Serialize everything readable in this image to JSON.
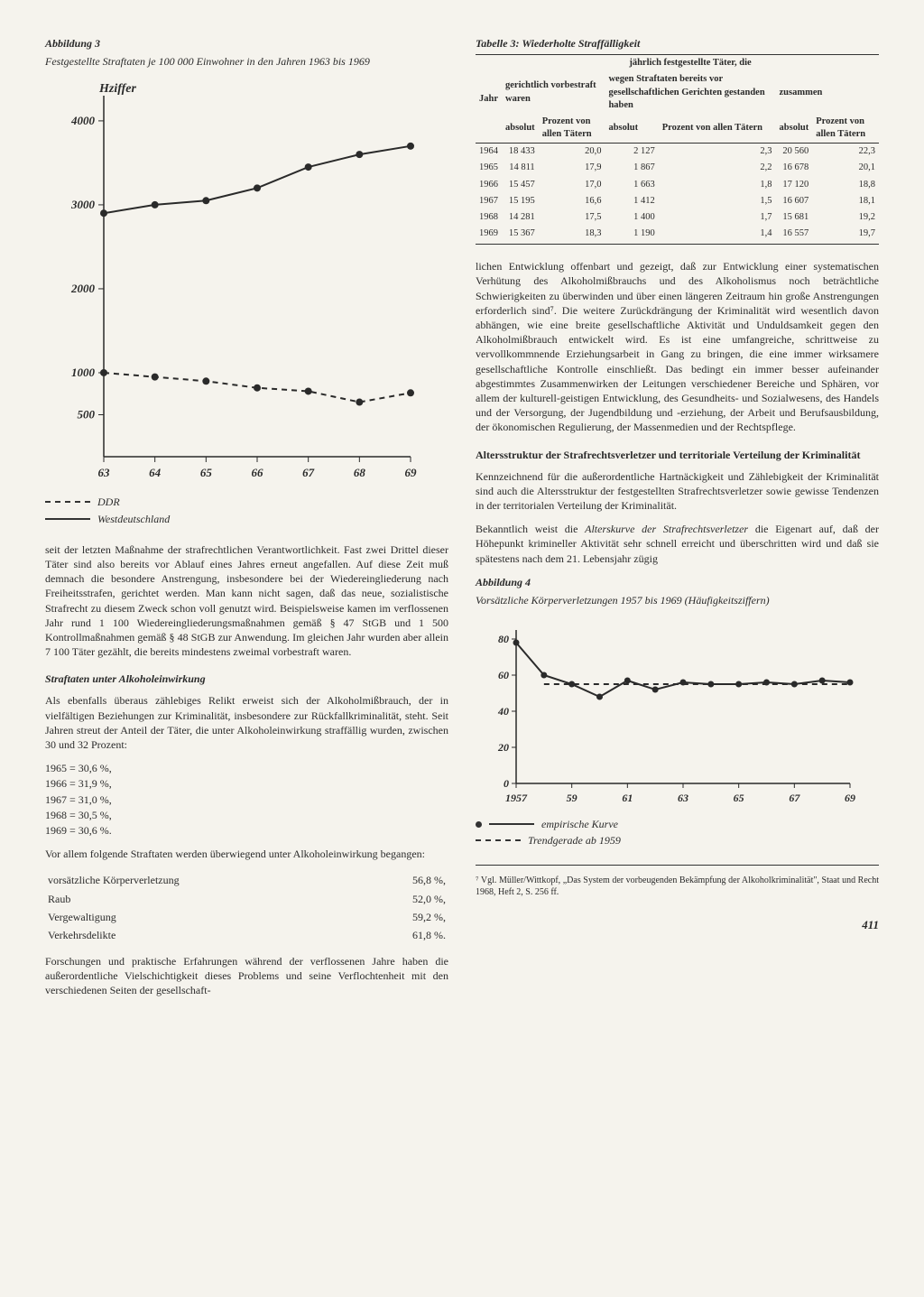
{
  "page_number": "411",
  "left": {
    "fig3": {
      "label": "Abbildung 3",
      "caption": "Festgestellte Straftaten je 100 000 Einwohner in den Jahren 1963 bis 1969",
      "y_label": "Hziffer",
      "type": "line",
      "x_labels": [
        "63",
        "64",
        "65",
        "66",
        "67",
        "68",
        "69"
      ],
      "y_ticks": [
        500,
        1000,
        2000,
        3000,
        4000
      ],
      "ylim": [
        0,
        4300
      ],
      "series": [
        {
          "name": "DDR",
          "style": "dashed",
          "marker": "circle",
          "values": [
            1000,
            950,
            900,
            820,
            780,
            650,
            760
          ]
        },
        {
          "name": "Westdeutschland",
          "style": "solid",
          "marker": "circle",
          "values": [
            2900,
            3000,
            3050,
            3200,
            3450,
            3600,
            3700
          ]
        }
      ],
      "line_color": "#2a2a2a",
      "legend": [
        {
          "style": "dashed",
          "label": "DDR"
        },
        {
          "style": "solid",
          "label": "Westdeutschland"
        }
      ]
    },
    "para1": "seit der letzten Maßnahme der strafrechtlichen Verantwortlichkeit. Fast zwei Drittel dieser Täter sind also bereits vor Ablauf eines Jahres erneut angefallen. Auf diese Zeit muß demnach die besondere Anstrengung, insbesondere bei der Wiedereingliederung nach Freiheitsstrafen, gerichtet werden. Man kann nicht sagen, daß das neue, sozialistische Strafrecht zu diesem Zweck schon voll genutzt wird. Beispielsweise kamen im verflossenen Jahr rund 1 100 Wiedereingliederungsmaßnahmen gemäß § 47 StGB und 1 500 Kontrollmaßnahmen gemäß § 48 StGB zur Anwendung. Im gleichen Jahr wurden aber allein 7 100 Täter gezählt, die bereits mindestens zweimal vorbestraft waren.",
    "heading_alcohol": "Straftaten unter Alkoholeinwirkung",
    "para2": "Als ebenfalls überaus zählebiges Relikt erweist sich der Alkoholmißbrauch, der in vielfältigen Beziehungen zur Kriminalität, insbesondere zur Rückfallkriminalität, steht. Seit Jahren streut der Anteil der Täter, die unter Alkoholeinwirkung straffällig wurden, zwischen 30 und 32 Prozent:",
    "alcohol_years": [
      {
        "year": "1965",
        "eq": "=",
        "pct": "30,6 %,"
      },
      {
        "year": "1966",
        "eq": "=",
        "pct": "31,9 %,"
      },
      {
        "year": "1967",
        "eq": "=",
        "pct": "31,0 %,"
      },
      {
        "year": "1968",
        "eq": "=",
        "pct": "30,5 %,"
      },
      {
        "year": "1969",
        "eq": "=",
        "pct": "30,6 %."
      }
    ],
    "para3": "Vor allem folgende Straftaten werden überwiegend unter Alkoholeinwirkung begangen:",
    "crime_pcts": [
      {
        "label": "vorsätzliche Körperverletzung",
        "pct": "56,8 %,"
      },
      {
        "label": "Raub",
        "pct": "52,0 %,"
      },
      {
        "label": "Vergewaltigung",
        "pct": "59,2 %,"
      },
      {
        "label": "Verkehrsdelikte",
        "pct": "61,8 %."
      }
    ],
    "para4": "Forschungen und praktische Erfahrungen während der verflossenen Jahre haben die außerordentliche Vielschichtigkeit dieses Problems und seine Verflochtenheit mit den verschiedenen Seiten der gesellschaft-"
  },
  "right": {
    "table3": {
      "title": "Tabelle 3: Wiederholte Straffälligkeit",
      "head_jahr": "Jahr",
      "head_super": "jährlich festgestellte Täter, die",
      "head_group1": "gerichtlich vorbestraft waren",
      "head_group2": "wegen Straftaten bereits vor gesellschaftlichen Gerichten gestanden haben",
      "head_group3": "zusammen",
      "sub_abs": "absolut",
      "sub_pct": "Prozent von allen Tätern",
      "rows": [
        {
          "y": "1964",
          "a1": "18 433",
          "p1": "20,0",
          "a2": "2 127",
          "p2": "2,3",
          "a3": "20 560",
          "p3": "22,3"
        },
        {
          "y": "1965",
          "a1": "14 811",
          "p1": "17,9",
          "a2": "1 867",
          "p2": "2,2",
          "a3": "16 678",
          "p3": "20,1"
        },
        {
          "y": "1966",
          "a1": "15 457",
          "p1": "17,0",
          "a2": "1 663",
          "p2": "1,8",
          "a3": "17 120",
          "p3": "18,8"
        },
        {
          "y": "1967",
          "a1": "15 195",
          "p1": "16,6",
          "a2": "1 412",
          "p2": "1,5",
          "a3": "16 607",
          "p3": "18,1"
        },
        {
          "y": "1968",
          "a1": "14 281",
          "p1": "17,5",
          "a2": "1 400",
          "p2": "1,7",
          "a3": "15 681",
          "p3": "19,2"
        },
        {
          "y": "1969",
          "a1": "15 367",
          "p1": "18,3",
          "a2": "1 190",
          "p2": "1,4",
          "a3": "16 557",
          "p3": "19,7"
        }
      ]
    },
    "para_cont": "lichen Entwicklung offenbart und gezeigt, daß zur Entwicklung einer systematischen Verhütung des Alkoholmißbrauchs und des Alkoholismus noch beträchtliche Schwierigkeiten zu überwinden und über einen längeren Zeitraum hin große Anstrengungen erforderlich sind⁷. Die weitere Zurückdrängung der Kriminalität wird wesentlich davon abhängen, wie eine breite gesellschaftliche Aktivität und Unduldsamkeit gegen den Alkoholmißbrauch entwickelt wird. Es ist eine umfangreiche, schrittweise zu vervollkommnende Erziehungsarbeit in Gang zu bringen, die eine immer wirksamere gesellschaftliche Kontrolle einschließt. Das bedingt ein immer besser aufeinander abgestimmtes Zusammenwirken der Leitungen verschiedener Bereiche und Sphären, vor allem der kulturell-geistigen Entwicklung, des Gesundheits- und Sozialwesens, des Handels und der Versorgung, der Jugendbildung und -erziehung, der Arbeit und Berufsausbildung, der ökonomischen Regulierung, der Massenmedien und der Rechtspflege.",
    "heading_age": "Altersstruktur der Strafrechtsverletzer und territoriale Verteilung der Kriminalität",
    "para_age1": "Kennzeichnend für die außerordentliche Hartnäckigkeit und Zählebigkeit der Kriminalität sind auch die Altersstruktur der festgestellten Strafrechtsverletzer sowie gewisse Tendenzen in der territorialen Verteilung der Kriminalität.",
    "para_age2_prefix": "Bekanntlich weist die ",
    "para_age2_italic": "Alterskurve der Strafrechtsverletzer",
    "para_age2_suffix": " die Eigenart auf, daß der Höhepunkt krimineller Aktivität sehr schnell erreicht und überschritten wird und daß sie spätestens nach dem 21. Lebensjahr zügig",
    "fig4": {
      "label": "Abbildung 4",
      "caption": "Vorsätzliche Körperverletzungen 1957 bis 1969 (Häufigkeitsziffern)",
      "type": "line",
      "x_labels": [
        "1957",
        "59",
        "61",
        "63",
        "65",
        "67",
        "69"
      ],
      "y_ticks": [
        0,
        20,
        40,
        60,
        80
      ],
      "ylim": [
        0,
        85
      ],
      "series": [
        {
          "name": "empirische Kurve",
          "style": "solid",
          "marker": "circle",
          "values": [
            78,
            60,
            55,
            48,
            57,
            52,
            56,
            55,
            55,
            56,
            55,
            57,
            56
          ]
        },
        {
          "name": "Trendgerade ab 1959",
          "style": "dashed",
          "marker": "none",
          "start_x": 1,
          "values": [
            55,
            55,
            55,
            55,
            55,
            55,
            55,
            55,
            55,
            55,
            55,
            55
          ]
        }
      ],
      "line_color": "#2a2a2a",
      "legend": [
        {
          "style": "solid",
          "marker": true,
          "label": "empirische Kurve"
        },
        {
          "style": "dashed",
          "marker": false,
          "label": "Trendgerade ab 1959"
        }
      ]
    },
    "footnote": "⁷ Vgl. Müller/Wittkopf, „Das System der vorbeugenden Bekämpfung der Alkoholkriminalität\", Staat und Recht 1968, Heft 2, S. 256 ff."
  }
}
